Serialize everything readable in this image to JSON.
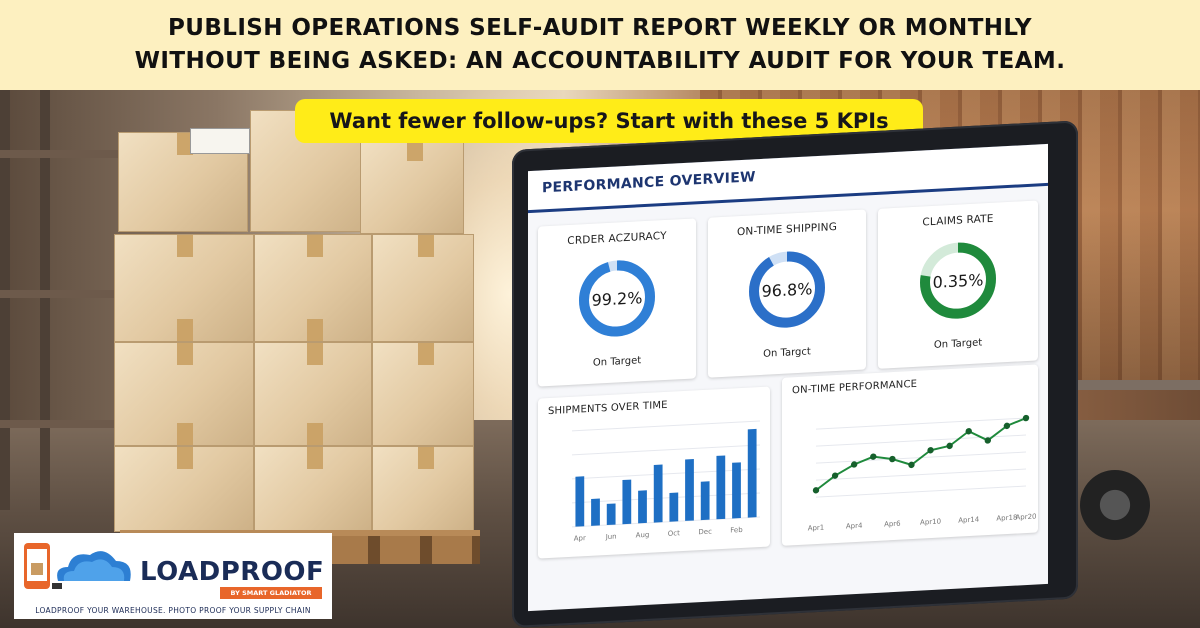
{
  "header": {
    "line1": "PUBLISH OPERATIONS SELF-AUDIT REPORT WEEKLY OR MONTHLY",
    "line2": "WITHOUT BEING ASKED: AN ACCOUNTABILITY AUDIT FOR YOUR TEAM."
  },
  "subtitle": "Want fewer follow-ups? Start with these 5 KPIs",
  "dashboard": {
    "title": "PERFORMANCE OVERVIEW",
    "kpis": [
      {
        "label": "CRDER ACZURACY",
        "value": "99.2%",
        "status": "On Target",
        "fraction": 0.96,
        "color": "#2f7fd6"
      },
      {
        "label": "ON-TIME SHIPPING",
        "value": "96.8%",
        "status": "On Targct",
        "fraction": 0.92,
        "color": "#2b6fc8"
      },
      {
        "label": "CLAIMS RATE",
        "value": "0.35%",
        "status": "On Target",
        "fraction": 0.78,
        "color": "#1f8a3c"
      }
    ],
    "shipments_chart": {
      "title": "SHIPMENTS OVER TIME"
    },
    "ontime_chart": {
      "title": "ON-TIME PERFORMANCE"
    }
  },
  "chart_data": [
    {
      "type": "bar",
      "title": "SHIPMENTS OVER TIME",
      "categories": [
        "Apr",
        "",
        "Jun",
        "",
        "Aug",
        "",
        "Oct",
        "",
        "Dec",
        "",
        "Feb",
        ""
      ],
      "values": [
        52,
        28,
        22,
        46,
        34,
        60,
        30,
        64,
        40,
        66,
        58,
        92
      ],
      "ylim": [
        0,
        100
      ],
      "color": "#1e6fc4"
    },
    {
      "type": "line",
      "title": "ON-TIME PERFORMANCE",
      "categories": [
        "Apr1",
        "",
        "Apr4",
        "",
        "Apr6",
        "",
        "Apr10",
        "",
        "Apr14",
        "",
        "Apr18",
        "Apr20"
      ],
      "values": [
        82,
        86,
        89,
        91,
        90,
        88,
        92,
        93,
        97,
        94,
        98,
        100
      ],
      "ylim": [
        75,
        105
      ],
      "color": "#1f8a3c"
    }
  ],
  "logo": {
    "wordmark": "LOADPROOF",
    "ribbon": "BY SMART GLADIATOR",
    "tagline": "LOADPROOF YOUR WAREHOUSE. PHOTO PROOF YOUR SUPPLY CHAIN"
  }
}
